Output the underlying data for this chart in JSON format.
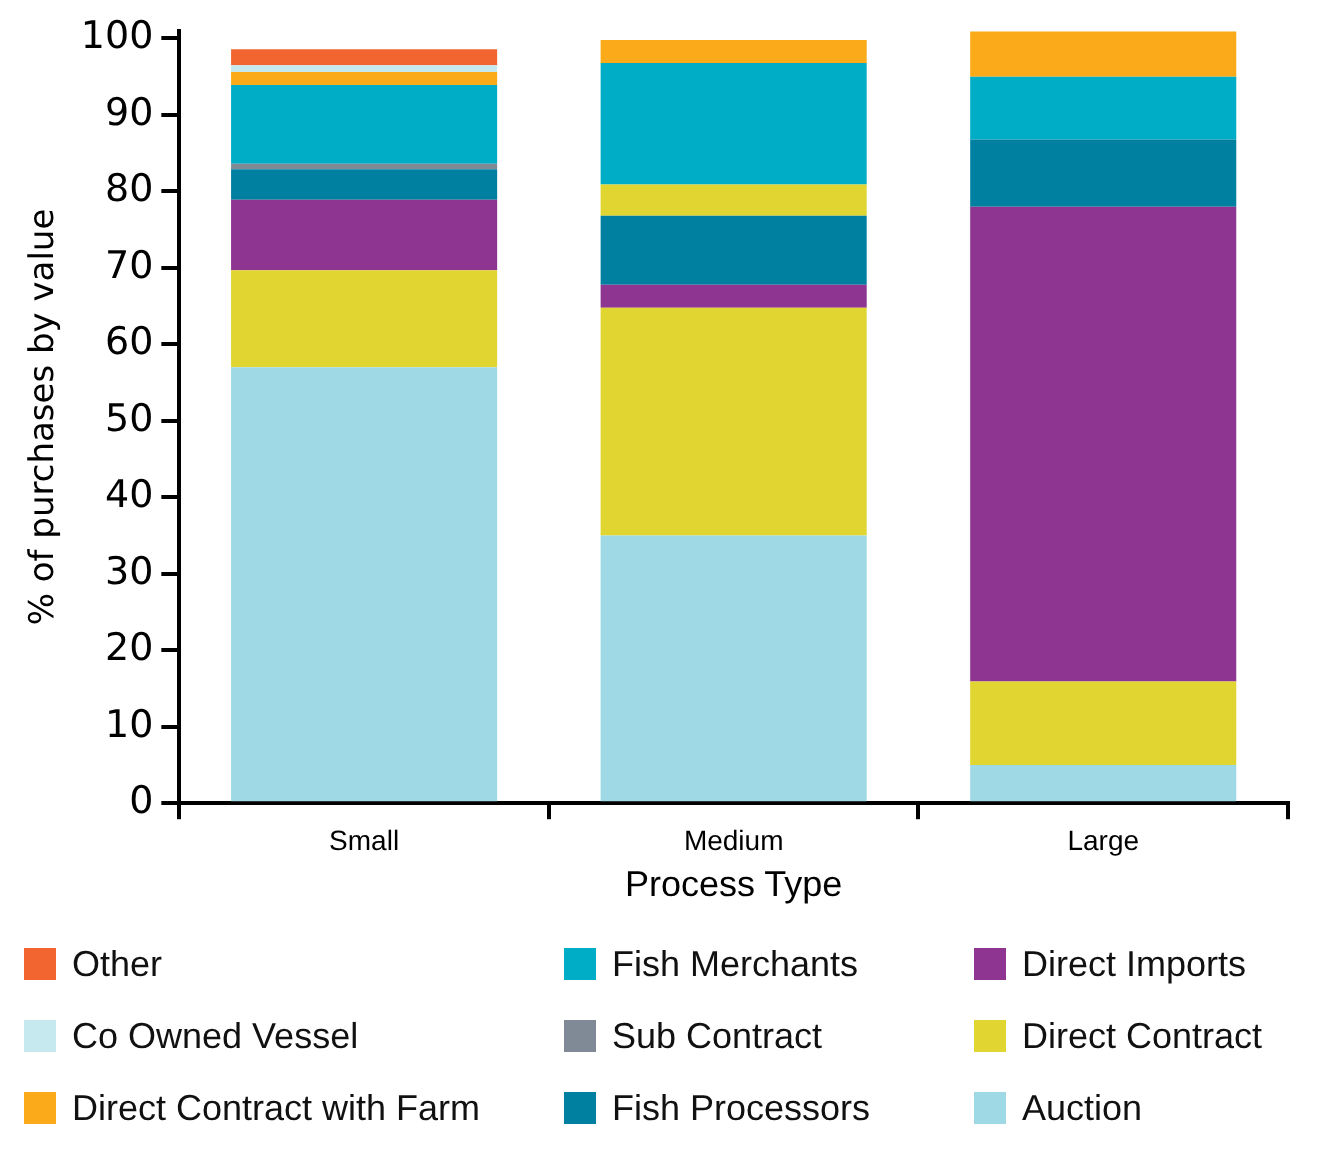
{
  "chart_data": {
    "type": "bar",
    "stacked": true,
    "xlabel": "Process Type",
    "ylabel": "% of purchases by value",
    "categories": [
      "Small",
      "Medium",
      "Large"
    ],
    "ylim": [
      0,
      101
    ],
    "yticks": [
      0,
      10,
      20,
      30,
      40,
      50,
      60,
      70,
      80,
      90,
      100
    ],
    "legend": "bottom",
    "series": [
      {
        "name": "Auction",
        "color": "#9fd9e5",
        "values": [
          57,
          35,
          5
        ]
      },
      {
        "name": "Direct Contract",
        "color": "#e1d531",
        "values": [
          12.7,
          29.8,
          10.9
        ]
      },
      {
        "name": "Direct Imports",
        "color": "#8e3491",
        "values": [
          9.2,
          3,
          62.1
        ]
      },
      {
        "name": "Fish Processors",
        "color": "#0080a0",
        "values": [
          4,
          9,
          8.8
        ]
      },
      {
        "name": "Sub Contract",
        "color": "#7f8a96",
        "colors": [
          "#7f8a96",
          "#e1d531",
          "#7f8a96"
        ],
        "values": [
          0.7,
          4.1,
          null
        ]
      },
      {
        "name": "Fish Merchants",
        "color": "#00adc6",
        "values": [
          10.3,
          15.9,
          8.2
        ]
      },
      {
        "name": "Direct Contract with Farm",
        "color": "#fbaa19",
        "values": [
          1.7,
          3,
          5.9
        ]
      },
      {
        "name": "Co Owned Vessel",
        "color": "#c6e9f0",
        "values": [
          0.9,
          null,
          null
        ]
      },
      {
        "name": "Other",
        "color": "#f26531",
        "values": [
          2.1,
          null,
          null
        ]
      }
    ]
  }
}
